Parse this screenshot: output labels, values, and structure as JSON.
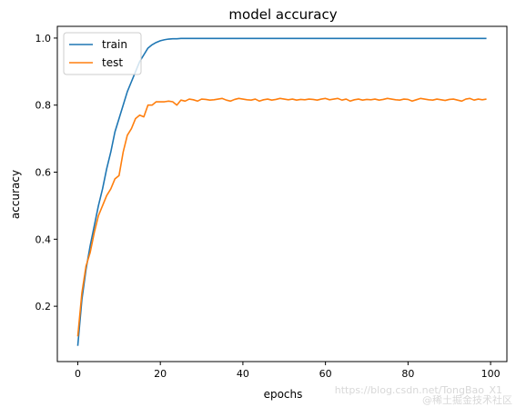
{
  "chart_data": {
    "type": "line",
    "title": "model accuracy",
    "xlabel": "epochs",
    "ylabel": "accuracy",
    "xlim": [
      -4.95,
      103.95
    ],
    "ylim": [
      0.035,
      1.035
    ],
    "xticks": [
      0,
      20,
      40,
      60,
      80,
      100
    ],
    "yticks": [
      0.2,
      0.4,
      0.6,
      0.8,
      1.0
    ],
    "xtick_labels": [
      "0",
      "20",
      "40",
      "60",
      "80",
      "100"
    ],
    "ytick_labels": [
      "0.2",
      "0.4",
      "0.6",
      "0.8",
      "1.0"
    ],
    "legend_position": "top-left",
    "grid": false,
    "series": [
      {
        "name": "train",
        "color": "#1f77b4",
        "values": [
          0.082,
          0.22,
          0.31,
          0.38,
          0.44,
          0.5,
          0.55,
          0.61,
          0.66,
          0.72,
          0.76,
          0.8,
          0.84,
          0.87,
          0.9,
          0.93,
          0.95,
          0.97,
          0.98,
          0.987,
          0.992,
          0.995,
          0.997,
          0.998,
          0.998,
          0.999,
          0.999,
          0.999,
          0.999,
          0.999,
          0.999,
          0.999,
          0.999,
          0.999,
          0.999,
          0.999,
          0.999,
          0.999,
          0.999,
          0.999,
          0.999,
          0.999,
          0.999,
          0.999,
          0.999,
          0.999,
          0.999,
          0.999,
          0.999,
          0.999,
          0.999,
          0.999,
          0.999,
          0.999,
          0.999,
          0.999,
          0.999,
          0.999,
          0.999,
          0.999,
          0.999,
          0.999,
          0.999,
          0.999,
          0.999,
          0.999,
          0.999,
          0.999,
          0.999,
          0.999,
          0.999,
          0.999,
          0.999,
          0.999,
          0.999,
          0.999,
          0.999,
          0.999,
          0.999,
          0.999,
          0.999,
          0.999,
          0.999,
          0.999,
          0.999,
          0.999,
          0.999,
          0.999,
          0.999,
          0.999,
          0.999,
          0.999,
          0.999,
          0.999,
          0.999,
          0.999,
          0.999,
          0.999,
          0.999,
          0.999
        ]
      },
      {
        "name": "test",
        "color": "#ff7f0e",
        "values": [
          0.11,
          0.24,
          0.32,
          0.36,
          0.42,
          0.47,
          0.5,
          0.53,
          0.55,
          0.58,
          0.59,
          0.66,
          0.71,
          0.73,
          0.76,
          0.77,
          0.765,
          0.8,
          0.8,
          0.81,
          0.81,
          0.81,
          0.812,
          0.81,
          0.8,
          0.815,
          0.812,
          0.818,
          0.816,
          0.812,
          0.818,
          0.817,
          0.815,
          0.816,
          0.818,
          0.82,
          0.815,
          0.812,
          0.817,
          0.82,
          0.818,
          0.816,
          0.815,
          0.818,
          0.812,
          0.816,
          0.818,
          0.815,
          0.817,
          0.82,
          0.818,
          0.816,
          0.818,
          0.815,
          0.817,
          0.816,
          0.818,
          0.817,
          0.815,
          0.818,
          0.82,
          0.816,
          0.818,
          0.82,
          0.815,
          0.818,
          0.812,
          0.816,
          0.818,
          0.815,
          0.817,
          0.816,
          0.818,
          0.815,
          0.817,
          0.82,
          0.818,
          0.816,
          0.815,
          0.818,
          0.817,
          0.812,
          0.816,
          0.82,
          0.818,
          0.816,
          0.815,
          0.818,
          0.816,
          0.814,
          0.817,
          0.818,
          0.815,
          0.812,
          0.818,
          0.82,
          0.815,
          0.818,
          0.816,
          0.818
        ]
      }
    ]
  },
  "watermark": {
    "primary": "https://blog.csdn.net/TongBao_X1",
    "secondary": "@稀土掘金技术社区"
  }
}
